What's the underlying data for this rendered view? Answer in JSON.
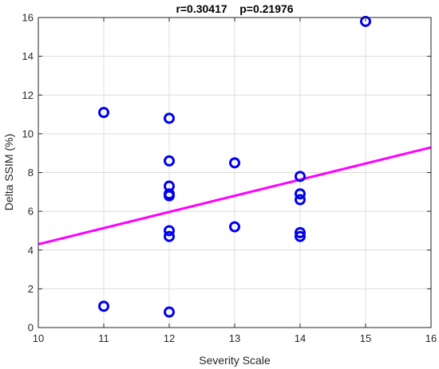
{
  "chart_data": {
    "type": "scatter",
    "title": "r=0.30417    p=0.21976",
    "xlabel": "Severity Scale",
    "ylabel": "Delta SSIM (%)",
    "xlim": [
      10,
      16
    ],
    "ylim": [
      0,
      16
    ],
    "xticks": [
      "10",
      "11",
      "12",
      "13",
      "14",
      "15",
      "16"
    ],
    "yticks": [
      "0",
      "2",
      "4",
      "6",
      "8",
      "10",
      "12",
      "14",
      "16"
    ],
    "grid": true,
    "points": [
      {
        "x": 11,
        "y": 11.1
      },
      {
        "x": 11,
        "y": 1.1
      },
      {
        "x": 12,
        "y": 10.8
      },
      {
        "x": 12,
        "y": 8.6
      },
      {
        "x": 12,
        "y": 7.3
      },
      {
        "x": 12,
        "y": 6.9
      },
      {
        "x": 12,
        "y": 6.8
      },
      {
        "x": 12,
        "y": 5.0
      },
      {
        "x": 12,
        "y": 4.7
      },
      {
        "x": 12,
        "y": 0.8
      },
      {
        "x": 13,
        "y": 8.5
      },
      {
        "x": 13,
        "y": 5.2
      },
      {
        "x": 14,
        "y": 7.8
      },
      {
        "x": 14,
        "y": 6.9
      },
      {
        "x": 14,
        "y": 6.6
      },
      {
        "x": 14,
        "y": 4.9
      },
      {
        "x": 14,
        "y": 4.7
      },
      {
        "x": 15,
        "y": 15.8
      }
    ],
    "fit_line": {
      "x": [
        10,
        16
      ],
      "y": [
        4.3,
        9.3
      ]
    },
    "colors": {
      "points": "#0000ee",
      "fit_line": "#ff00ff",
      "grid": "#dcdcdc",
      "axis": "#262626"
    }
  }
}
